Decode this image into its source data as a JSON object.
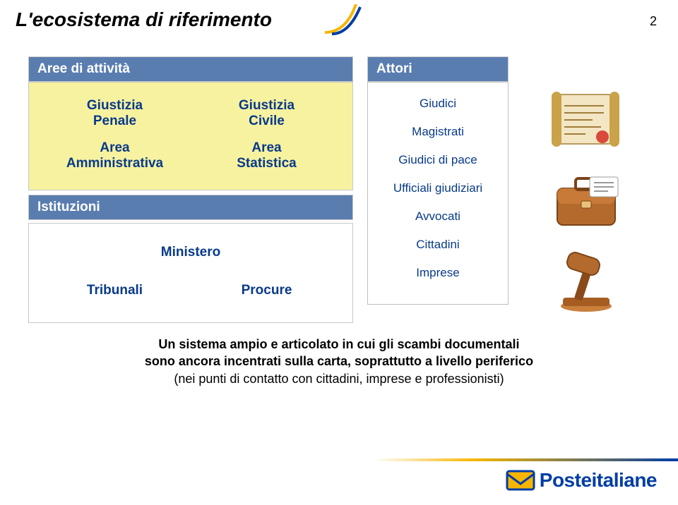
{
  "page": {
    "title": "L'ecosistema di riferimento",
    "number": "2",
    "title_color": "#000000",
    "accent_blue": "#083a8a",
    "header_bg": "#5a7db0",
    "yellow_bg": "#f7f2a0"
  },
  "left": {
    "aree_header": "Aree di attività",
    "aree_cells": [
      "Giustizia Penale",
      "Giustizia Civile",
      "Area Amministrativa",
      "Area Statistica"
    ],
    "istituzioni_header": "Istituzioni",
    "istituzioni_cells": [
      "Ministero",
      "Tribunali",
      "Procure"
    ]
  },
  "attori": {
    "header": "Attori",
    "items": [
      "Giudici",
      "Magistrati",
      "Giudici di pace",
      "Ufficiali giudiziari",
      "Avvocati",
      "Cittadini",
      "Imprese"
    ]
  },
  "icons": {
    "scroll_desc": "parchment-scroll",
    "briefcase_desc": "briefcase",
    "gavel_desc": "gavel"
  },
  "caption": {
    "line1": "Un sistema ampio e articolato in cui gli scambi documentali",
    "line2": "sono ancora incentrati sulla carta, soprattutto a livello periferico",
    "line3": "(nei punti di contatto con cittadini, imprese e professionisti)"
  },
  "footer": {
    "logo_text_a": "Poste",
    "logo_text_b": "italiane",
    "logo_blue": "#003da5",
    "logo_yellow": "#f7b500"
  }
}
